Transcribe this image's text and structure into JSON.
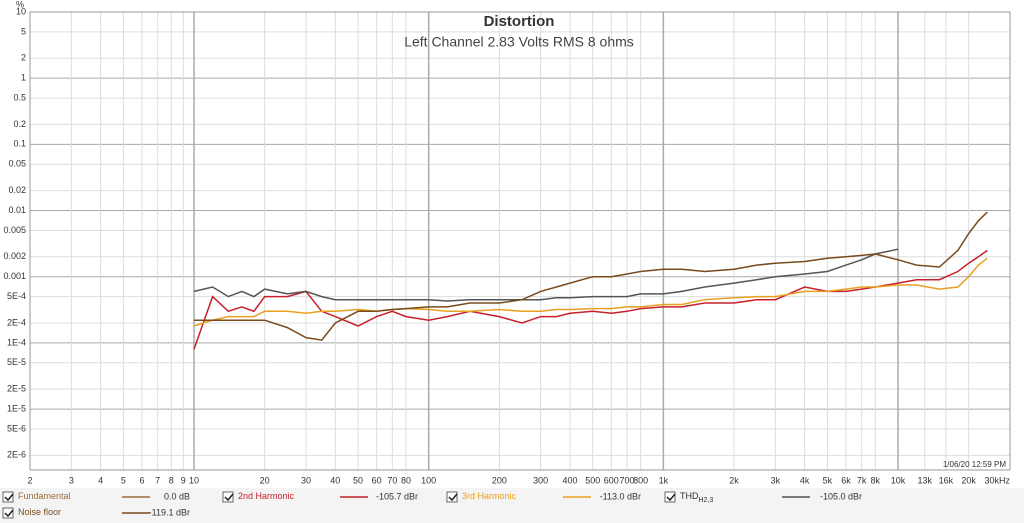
{
  "chart_data": {
    "type": "line",
    "title": "Distortion",
    "subtitle": "Left Channel 2.83 Volts RMS 8 ohms",
    "y_label": "%",
    "timestamp": "1/06/20 12:59 PM",
    "log_x": true,
    "log_y": true,
    "grid": true,
    "xlim": [
      2,
      30000
    ],
    "ylim": [
      1.2e-06,
      10
    ],
    "xticks": [
      2,
      3,
      4,
      5,
      6,
      7,
      8,
      9,
      10,
      20,
      30,
      40,
      50,
      60,
      70,
      80,
      100,
      200,
      300,
      400,
      500,
      600,
      700,
      800,
      {
        "value": 1000,
        "label": "1k"
      },
      {
        "value": 2000,
        "label": "2k"
      },
      {
        "value": 3000,
        "label": "3k"
      },
      {
        "value": 4000,
        "label": "4k"
      },
      {
        "value": 5000,
        "label": "5k"
      },
      {
        "value": 6000,
        "label": "6k"
      },
      {
        "value": 7000,
        "label": "7k"
      },
      {
        "value": 8000,
        "label": "8k"
      },
      {
        "value": 10000,
        "label": "10k"
      },
      {
        "value": 13000,
        "label": "13k"
      },
      {
        "value": 16000,
        "label": "16k"
      },
      {
        "value": 20000,
        "label": "20k"
      },
      {
        "value": 30000,
        "label": "30kHz"
      }
    ],
    "yticks": [
      10,
      5,
      2,
      1,
      0.5,
      0.2,
      0.1,
      0.05,
      0.02,
      0.01,
      0.005,
      0.002,
      0.001,
      {
        "value": 0.0005,
        "label": "5E-4"
      },
      {
        "value": 0.0002,
        "label": "2E-4"
      },
      {
        "value": 0.0001,
        "label": "1E-4"
      },
      {
        "value": 5e-05,
        "label": "5E-5"
      },
      {
        "value": 2e-05,
        "label": "2E-5"
      },
      {
        "value": 1e-05,
        "label": "1E-5"
      },
      {
        "value": 5e-06,
        "label": "5E-6"
      },
      {
        "value": 2e-06,
        "label": "2E-6"
      }
    ],
    "x": [
      10,
      12,
      14,
      16,
      18,
      20,
      25,
      30,
      35,
      40,
      50,
      60,
      70,
      80,
      100,
      120,
      150,
      200,
      250,
      300,
      350,
      400,
      500,
      600,
      700,
      800,
      1000,
      1200,
      1500,
      2000,
      2500,
      3000,
      4000,
      5000,
      6000,
      7000,
      8000,
      10000,
      12000,
      15000,
      18000,
      20000,
      22000,
      24000
    ],
    "series": [
      {
        "name": "Fundamental",
        "color": "#9c6b3c",
        "reading": "0.0 dB"
      },
      {
        "name": "2nd Harmonic",
        "color": "#c8202a",
        "reading": "-105.7 dBr",
        "values": [
          8e-05,
          0.0005,
          0.0003,
          0.00035,
          0.0003,
          0.0005,
          0.0005,
          0.0006,
          0.0003,
          0.00025,
          0.00018,
          0.00025,
          0.0003,
          0.00025,
          0.00022,
          0.00025,
          0.0003,
          0.00025,
          0.0002,
          0.00025,
          0.00025,
          0.00028,
          0.0003,
          0.00028,
          0.0003,
          0.00033,
          0.00035,
          0.00035,
          0.0004,
          0.0004,
          0.00045,
          0.00045,
          0.0007,
          0.0006,
          0.0006,
          0.00065,
          0.0007,
          0.0008,
          0.0009,
          0.0009,
          0.0012,
          0.0016,
          0.002,
          0.0025
        ]
      },
      {
        "name": "3rd Harmonic",
        "color": "#e8a020",
        "reading": "-113.0 dBr",
        "values": [
          0.00018,
          0.00022,
          0.00025,
          0.00025,
          0.00025,
          0.0003,
          0.0003,
          0.00028,
          0.0003,
          0.0003,
          0.00032,
          0.0003,
          0.00032,
          0.00033,
          0.00032,
          0.0003,
          0.0003,
          0.00032,
          0.0003,
          0.0003,
          0.00032,
          0.00032,
          0.00033,
          0.00033,
          0.00035,
          0.00035,
          0.00038,
          0.00038,
          0.00045,
          0.00048,
          0.0005,
          0.0005,
          0.0006,
          0.0006,
          0.00065,
          0.0007,
          0.0007,
          0.00075,
          0.00075,
          0.00065,
          0.0007,
          0.001,
          0.0015,
          0.0019
        ]
      },
      {
        "name": "THD",
        "name_sub": "H2,3",
        "color": "#555555",
        "reading": "-105.0 dBr",
        "values": [
          0.0006,
          0.0007,
          0.0005,
          0.0006,
          0.0005,
          0.00065,
          0.00055,
          0.0006,
          0.0005,
          0.00045,
          0.00045,
          0.00045,
          0.00045,
          0.00045,
          0.00045,
          0.00043,
          0.00045,
          0.00045,
          0.00045,
          0.00045,
          0.00048,
          0.00048,
          0.0005,
          0.0005,
          0.0005,
          0.00055,
          0.00055,
          0.0006,
          0.0007,
          0.0008,
          0.0009,
          0.001,
          0.0011,
          0.0012,
          0.0015,
          0.0018,
          0.0022,
          0.0026,
          null,
          null,
          null,
          null,
          null,
          null
        ]
      },
      {
        "name": "Noise floor",
        "color": "#7a4a1e",
        "reading": "-119.1 dBr",
        "values": [
          0.00022,
          0.00022,
          0.00022,
          0.00022,
          0.00022,
          0.00022,
          0.00017,
          0.00012,
          0.00011,
          0.0002,
          0.0003,
          0.0003,
          0.00032,
          0.00033,
          0.00035,
          0.00035,
          0.0004,
          0.0004,
          0.00045,
          0.0006,
          0.0007,
          0.0008,
          0.001,
          0.001,
          0.0011,
          0.0012,
          0.0013,
          0.0013,
          0.0012,
          0.0013,
          0.0015,
          0.0016,
          0.0017,
          0.0019,
          0.002,
          0.0021,
          0.0022,
          0.0018,
          0.0015,
          0.0014,
          0.0025,
          0.0045,
          0.007,
          0.0095
        ]
      }
    ]
  }
}
